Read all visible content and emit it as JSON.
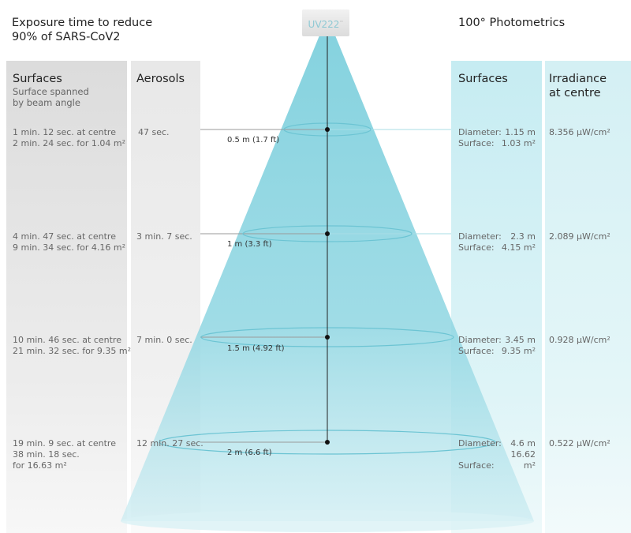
{
  "header": {
    "exposure_title_line1": "Exposure time to reduce",
    "exposure_title_line2": "90% of SARS-CoV2",
    "photometrics_title": "100° Photometrics"
  },
  "lamp": {
    "label": "UV222",
    "mark": "™"
  },
  "columns": {
    "surfaces_left": {
      "title": "Surfaces",
      "subtitle_line1": "Surface spanned",
      "subtitle_line2": "by beam angle"
    },
    "aerosols": {
      "title": "Aerosols"
    },
    "surfaces_right": {
      "title": "Surfaces"
    },
    "irradiance": {
      "title_line1": "Irradiance",
      "title_line2": "at centre"
    }
  },
  "rows": [
    {
      "distance": "0.5 m (1.7 ft)",
      "surface_exposure": [
        "1 min. 12 sec. at centre",
        "2 min. 24 sec. for 1.04 m²"
      ],
      "aerosol_exposure": "47 sec.",
      "diameter": "1.15 m",
      "surface_area": "1.03 m²",
      "irradiance": "8.356 µW/cm²"
    },
    {
      "distance": "1 m (3.3 ft)",
      "surface_exposure": [
        "4 min. 47 sec. at centre",
        "9 min. 34 sec. for 4.16 m²"
      ],
      "aerosol_exposure": "3 min. 7 sec.",
      "diameter": "2.3 m",
      "surface_area": "4.15 m²",
      "irradiance": "2.089 µW/cm²"
    },
    {
      "distance": "1.5 m (4.92 ft)",
      "surface_exposure": [
        "10 min. 46 sec. at centre",
        "21 min. 32 sec. for 9.35 m²"
      ],
      "aerosol_exposure": "7 min. 0 sec.",
      "diameter": "3.45 m",
      "surface_area": "9.35 m²",
      "irradiance": "0.928 µW/cm²"
    },
    {
      "distance": "2 m (6.6 ft)",
      "surface_exposure": [
        "19 min. 9 sec. at centre",
        "38 min. 18 sec.",
        "for 16.63 m²"
      ],
      "aerosol_exposure": "12 min. 27 sec.",
      "diameter": "4.6 m",
      "surface_area": "16.62 m²",
      "irradiance": "0.522 µW/cm²"
    }
  ],
  "labels": {
    "diameter": "Diameter:",
    "surface": "Surface:"
  },
  "colors": {
    "beam": "#8fd3df",
    "left_column_bg": "#e3e3e3",
    "aerosol_column_bg": "#ececec",
    "right_column_bg": "#cdeef3",
    "axis_line": "#222222"
  }
}
